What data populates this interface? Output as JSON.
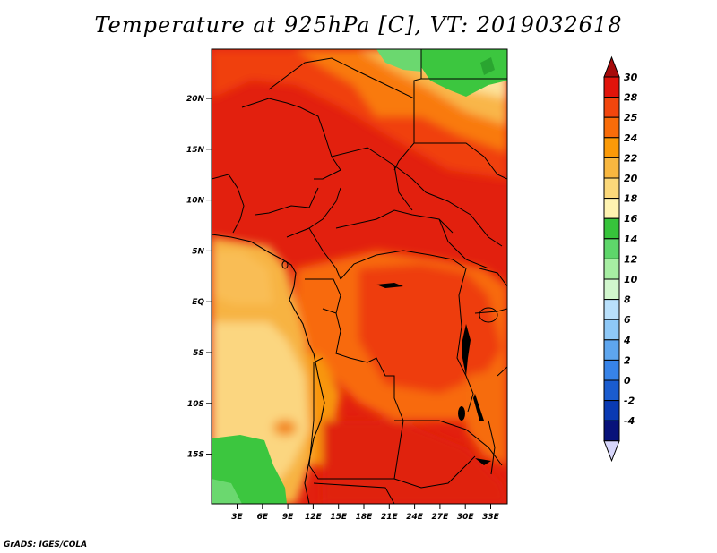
{
  "title": "Temperature at 925hPa [C], VT: 2019032618",
  "credit": "GrADS: IGES/COLA",
  "map": {
    "lat_ticks": [
      "20N",
      "15N",
      "10N",
      "5N",
      "EQ",
      "5S",
      "10S",
      "15S"
    ],
    "lon_ticks": [
      "3E",
      "6E",
      "9E",
      "12E",
      "15E",
      "18E",
      "21E",
      "24E",
      "27E",
      "30E",
      "33E"
    ]
  },
  "colorbar": {
    "labels": [
      "30",
      "28",
      "25",
      "24",
      "22",
      "20",
      "18",
      "16",
      "14",
      "12",
      "10",
      "8",
      "6",
      "4",
      "2",
      "0",
      "-2",
      "-4"
    ],
    "colors": [
      "#e1140b",
      "#f2460d",
      "#f96c09",
      "#fb9a08",
      "#f8b740",
      "#fbd87a",
      "#fef3b1",
      "#37c43b",
      "#5ed66a",
      "#a7eea3",
      "#d1f6cd",
      "#b9e0fb",
      "#8ec8f7",
      "#5ea6ef",
      "#3783e8",
      "#1a5ccf",
      "#0a3ab3",
      "#08127a"
    ],
    "top_arrow_color": "#a60a0a",
    "bottom_arrow_color": "#d7d6fb"
  }
}
